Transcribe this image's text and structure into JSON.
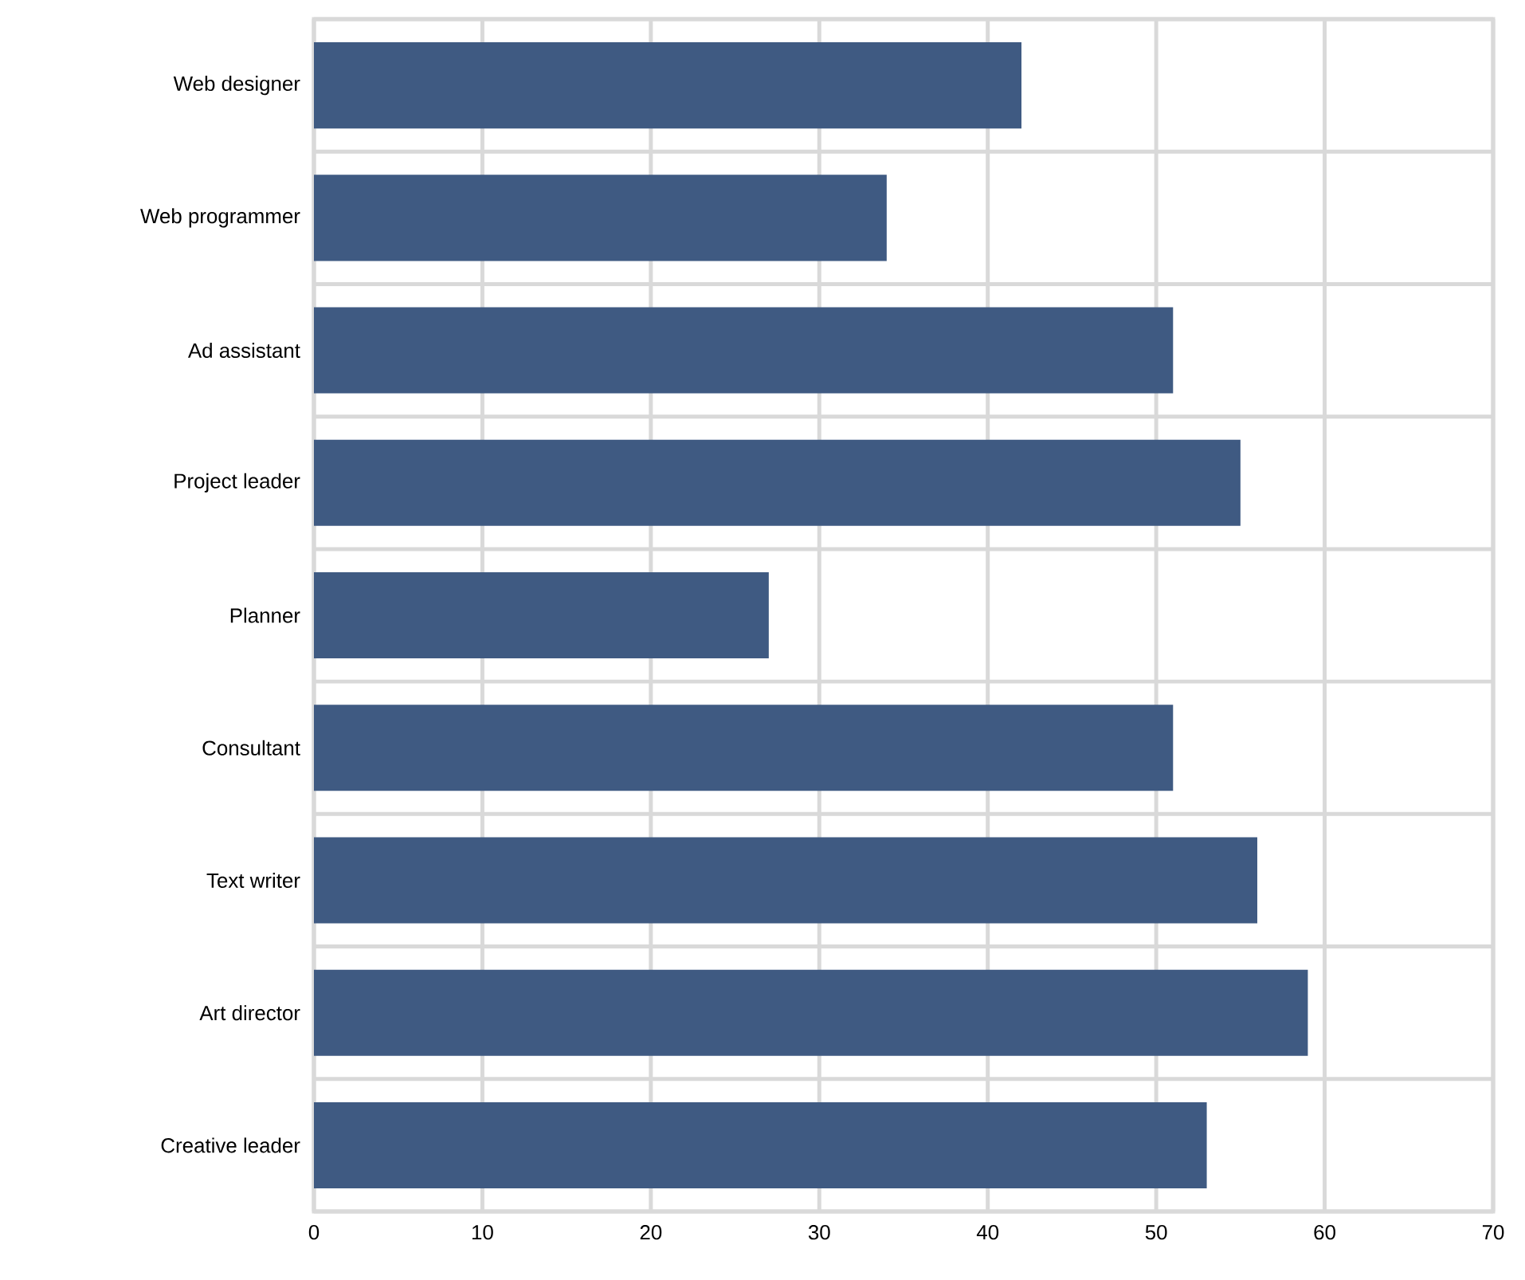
{
  "chart_data": {
    "type": "bar",
    "orientation": "horizontal",
    "categories": [
      "Web designer",
      "Web programmer",
      "Ad assistant",
      "Project leader",
      "Planner",
      "Consultant",
      "Text writer",
      "Art director",
      "Creative leader"
    ],
    "values": [
      42,
      34,
      51,
      55,
      27,
      51,
      56,
      59,
      53
    ],
    "color": "#3f5a82",
    "xlim": [
      0,
      70
    ],
    "xticks": [
      0,
      10,
      20,
      30,
      40,
      50,
      60,
      70
    ],
    "grid": true,
    "tick_labels": "xy"
  }
}
